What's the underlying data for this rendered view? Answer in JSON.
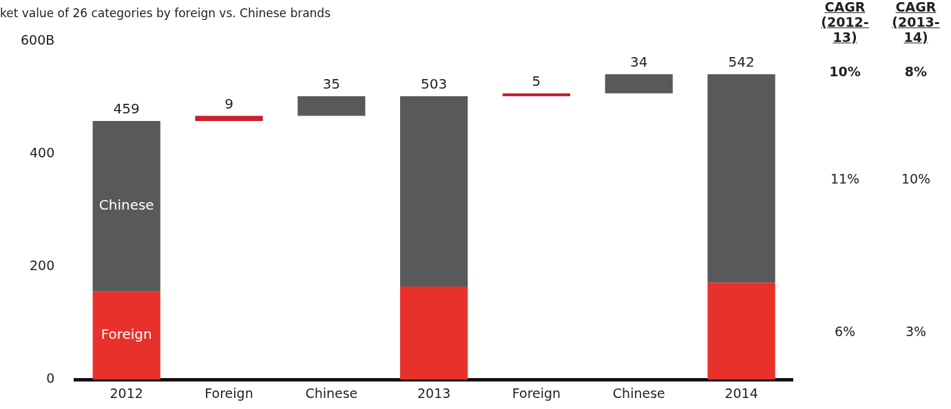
{
  "chart_data": {
    "type": "bar",
    "title": "ket value of 26 categories by foreign vs. Chinese brands",
    "categories": [
      "2012",
      "Foreign",
      "Chinese",
      "2013",
      "Foreign",
      "Chinese",
      "2014"
    ],
    "stacked": true,
    "series": [
      {
        "name": "Foreign",
        "color": "#e8312a",
        "colors": [
          "#e8312a",
          "#cc1f2a",
          null,
          "#e8312a",
          "#cc1f2a",
          null,
          "#e8312a"
        ],
        "values": [
          156,
          9,
          null,
          165,
          5,
          null,
          172
        ],
        "base": [
          0,
          459,
          null,
          0,
          503,
          null,
          0
        ],
        "value_labels": [
          null,
          "9",
          null,
          null,
          "5",
          null,
          null
        ]
      },
      {
        "name": "Chinese",
        "color": "#58595b",
        "values": [
          303,
          null,
          35,
          338,
          null,
          34,
          370
        ],
        "base": [
          156,
          null,
          468,
          165,
          null,
          508,
          172
        ],
        "value_labels": [
          null,
          null,
          "35",
          null,
          null,
          "34",
          null
        ]
      }
    ],
    "totals": [
      "459",
      null,
      null,
      "503",
      null,
      null,
      "542"
    ],
    "ylim": [
      0,
      600
    ],
    "yticks": [
      0,
      200,
      400,
      {
        "value": 600,
        "label": "600B"
      }
    ],
    "grid": false,
    "legend": false,
    "annotations": [
      "CAGR (2012-13)",
      "CAGR (2013-14)",
      "10%",
      "8%",
      "11%",
      "10%",
      "6%",
      "3%"
    ]
  }
}
